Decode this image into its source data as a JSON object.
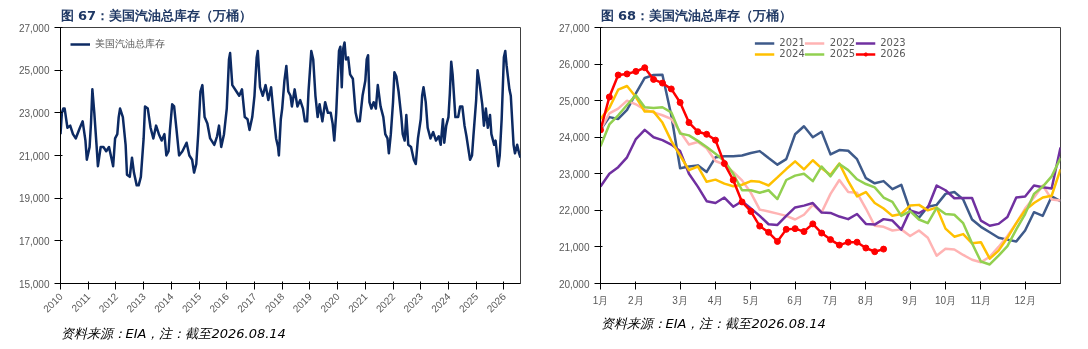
{
  "chart_data": [
    {
      "type": "line",
      "title": "图 67：美国汽油总库存（万桶）",
      "annotations": [
        "资料来源：EIA，注：截至2026.08.14"
      ],
      "grid": false,
      "legend": "top left",
      "xlim": [
        2010,
        2026.6
      ],
      "xticks": [
        2010,
        2011,
        2012,
        2013,
        2014,
        2015,
        2016,
        2017,
        2018,
        2019,
        2020,
        2021,
        2022,
        2023,
        2024,
        2025,
        2026
      ],
      "ylim": [
        15000,
        27000
      ],
      "yticks": [
        {
          "value": 15000,
          "label": "15,000"
        },
        {
          "value": 17000,
          "label": "17,000"
        },
        {
          "value": 19000,
          "label": "19,000"
        },
        {
          "value": 21000,
          "label": "21,000"
        },
        {
          "value": 23000,
          "label": "23,000"
        },
        {
          "value": 25000,
          "label": "25,000"
        },
        {
          "value": 27000,
          "label": "27,000"
        }
      ],
      "x": [
        2010.0,
        2010.05,
        2010.1,
        2010.15,
        2010.25,
        2010.35,
        2010.45,
        2010.55,
        2010.7,
        2010.8,
        2010.9,
        2010.95,
        2011.05,
        2011.1,
        2011.15,
        2011.22,
        2011.3,
        2011.35,
        2011.45,
        2011.55,
        2011.65,
        2011.75,
        2011.85,
        2011.9,
        2011.97,
        2012.05,
        2012.1,
        2012.15,
        2012.25,
        2012.35,
        2012.4,
        2012.5,
        2012.58,
        2012.65,
        2012.75,
        2012.82,
        2012.9,
        2013.0,
        2013.05,
        2013.15,
        2013.25,
        2013.35,
        2013.45,
        2013.55,
        2013.65,
        2013.75,
        2013.82,
        2013.9,
        2013.95,
        2014.03,
        2014.1,
        2014.18,
        2014.28,
        2014.4,
        2014.55,
        2014.65,
        2014.75,
        2014.82,
        2014.9,
        2014.97,
        2015.05,
        2015.12,
        2015.2,
        2015.3,
        2015.4,
        2015.55,
        2015.65,
        2015.72,
        2015.8,
        2015.9,
        2016.0,
        2016.08,
        2016.12,
        2016.2,
        2016.35,
        2016.45,
        2016.55,
        2016.65,
        2016.75,
        2016.82,
        2016.92,
        2017.0,
        2017.08,
        2017.12,
        2017.2,
        2017.3,
        2017.4,
        2017.5,
        2017.6,
        2017.7,
        2017.78,
        2017.85,
        2017.88,
        2017.95,
        2018.0,
        2018.08,
        2018.15,
        2018.22,
        2018.3,
        2018.35,
        2018.45,
        2018.55,
        2018.65,
        2018.75,
        2018.82,
        2018.9,
        2018.95,
        2019.05,
        2019.12,
        2019.2,
        2019.28,
        2019.35,
        2019.45,
        2019.55,
        2019.65,
        2019.75,
        2019.82,
        2019.88,
        2019.95,
        2020.0,
        2020.05,
        2020.1,
        2020.15,
        2020.2,
        2020.25,
        2020.3,
        2020.38,
        2020.45,
        2020.55,
        2020.65,
        2020.72,
        2020.8,
        2020.9,
        2021.0,
        2021.05,
        2021.1,
        2021.15,
        2021.22,
        2021.3,
        2021.38,
        2021.45,
        2021.55,
        2021.65,
        2021.72,
        2021.8,
        2021.85,
        2021.92,
        2022.0,
        2022.05,
        2022.12,
        2022.2,
        2022.3,
        2022.35,
        2022.42,
        2022.48,
        2022.55,
        2022.65,
        2022.75,
        2022.82,
        2022.9,
        2023.0,
        2023.05,
        2023.1,
        2023.18,
        2023.25,
        2023.35,
        2023.45,
        2023.55,
        2023.65,
        2023.72,
        2023.8,
        2023.85,
        2023.92,
        2024.0,
        2024.05,
        2024.1,
        2024.15,
        2024.25,
        2024.35,
        2024.42,
        2024.5,
        2024.58,
        2024.65,
        2024.72,
        2024.78,
        2024.85,
        2024.9,
        2025.0,
        2025.05,
        2025.12,
        2025.22,
        2025.28,
        2025.35,
        2025.42,
        2025.5,
        2025.55,
        2025.65,
        2025.7,
        2025.8,
        2025.85,
        2025.92,
        2026.0,
        2026.05,
        2026.1,
        2026.2,
        2026.25,
        2026.35,
        2026.4,
        2026.48,
        2026.55,
        2026.6
      ],
      "series": [
        {
          "name": "美国汽油总库存",
          "color": "#0c2a63",
          "values": [
            22000,
            23000,
            23200,
            23200,
            22300,
            22400,
            22000,
            21800,
            22300,
            22600,
            21700,
            20800,
            21400,
            22500,
            24100,
            23000,
            21500,
            20500,
            21400,
            21400,
            21200,
            21400,
            20800,
            20500,
            21800,
            22000,
            22800,
            23200,
            22800,
            21500,
            20100,
            20000,
            20900,
            20200,
            19600,
            19600,
            20000,
            21800,
            23300,
            23200,
            22300,
            21800,
            22400,
            22000,
            21700,
            22000,
            21000,
            21200,
            22200,
            23400,
            23300,
            22300,
            21000,
            21200,
            21600,
            21000,
            20800,
            20200,
            20600,
            22000,
            24000,
            24300,
            22800,
            22500,
            21800,
            21500,
            21900,
            22400,
            21400,
            22000,
            23200,
            25500,
            25800,
            24300,
            24000,
            23800,
            24100,
            22800,
            22700,
            22200,
            22800,
            23800,
            25600,
            25900,
            24200,
            23800,
            24300,
            23600,
            24200,
            22800,
            21800,
            21400,
            21000,
            22700,
            23200,
            24500,
            25200,
            24000,
            23800,
            23300,
            24100,
            23300,
            23600,
            23200,
            22600,
            22600,
            24000,
            25900,
            25500,
            23800,
            22800,
            23400,
            22600,
            23500,
            23000,
            23000,
            22500,
            21700,
            23000,
            24500,
            25900,
            26100,
            24200,
            26000,
            26300,
            25500,
            25600,
            24800,
            24600,
            23000,
            22600,
            22600,
            23800,
            24500,
            25500,
            25700,
            23500,
            23200,
            23500,
            23200,
            24300,
            23300,
            22800,
            22000,
            21800,
            21100,
            22000,
            23500,
            24900,
            24700,
            24000,
            22800,
            22000,
            21700,
            22900,
            21500,
            21400,
            20800,
            20600,
            21800,
            22700,
            23800,
            24200,
            23500,
            22300,
            21800,
            22100,
            21700,
            21900,
            21500,
            22700,
            21600,
            22400,
            22800,
            23900,
            25400,
            24800,
            22800,
            22800,
            23300,
            23300,
            22400,
            21900,
            21300,
            20800,
            21000,
            21900,
            23600,
            25000,
            24400,
            23400,
            22400,
            23200,
            22300,
            22900,
            22000,
            21500,
            21700,
            20500,
            21000,
            22700,
            25600,
            25900,
            25200,
            24100,
            23800,
            21500,
            21100,
            21500,
            21100,
            20900
          ]
        }
      ]
    },
    {
      "type": "line",
      "title": "图 68：美国汽油总库存（万桶）",
      "annotations": [
        "资料来源：EIA，注：截至2026.08.14"
      ],
      "grid": false,
      "legend": "top",
      "categories": [
        "1月",
        null,
        null,
        null,
        "2月",
        null,
        null,
        null,
        null,
        "3月",
        null,
        null,
        null,
        "4月",
        null,
        null,
        null,
        "5月",
        null,
        null,
        null,
        null,
        "6月",
        null,
        null,
        null,
        "7月",
        null,
        null,
        null,
        "8月",
        null,
        null,
        null,
        null,
        "9月",
        null,
        null,
        null,
        "10月",
        null,
        null,
        null,
        "11月",
        null,
        null,
        null,
        null,
        "12月",
        null,
        null,
        null,
        null
      ],
      "ylim": [
        20000,
        27000
      ],
      "yticks": [
        {
          "value": 20000,
          "label": "20,000"
        },
        {
          "value": 21000,
          "label": "21,000"
        },
        {
          "value": 22000,
          "label": "22,000"
        },
        {
          "value": 23000,
          "label": "23,000"
        },
        {
          "value": 24000,
          "label": "24,000"
        },
        {
          "value": 25000,
          "label": "25,000"
        },
        {
          "value": 26000,
          "label": "26,000"
        },
        {
          "value": 27000,
          "label": "27,000"
        }
      ],
      "series": [
        {
          "name": "2021",
          "color": "#3e5a8a",
          "values": [
            24200,
            24550,
            24500,
            24750,
            25200,
            25620,
            25700,
            25710,
            24600,
            23150,
            23200,
            23230,
            23050,
            23450,
            23480,
            23480,
            23500,
            23570,
            23620,
            23430,
            23250,
            23400,
            24080,
            24300,
            24000,
            24150,
            23530,
            23650,
            23630,
            23400,
            22880,
            22740,
            22800,
            22580,
            22700,
            22000,
            21800,
            22100,
            22150,
            22450,
            22500,
            22300,
            21750,
            21550,
            21400,
            21250,
            21200,
            21150,
            21450,
            21950,
            21850,
            22380,
            22250
          ]
        },
        {
          "name": "2022",
          "color": "#ffb3b3",
          "values": [
            24200,
            24650,
            24780,
            25000,
            24900,
            24750,
            24680,
            24600,
            24500,
            24150,
            23800,
            23870,
            23700,
            23350,
            23250,
            23050,
            22820,
            22480,
            22020,
            21970,
            21910,
            21850,
            21750,
            21880,
            22150,
            21950,
            22450,
            22830,
            22500,
            22480,
            22050,
            21580,
            21550,
            21450,
            21480,
            21300,
            21450,
            21250,
            20760,
            20950,
            20930,
            20780,
            20650,
            20580,
            20730,
            21000,
            21300,
            21650,
            22050,
            22350,
            22680,
            22300,
            22270
          ]
        },
        {
          "name": "2023",
          "color": "#7030a0",
          "values": [
            22650,
            23000,
            23180,
            23450,
            23950,
            24200,
            24000,
            23920,
            23800,
            23620,
            23000,
            22650,
            22250,
            22200,
            22350,
            22100,
            22250,
            22050,
            21850,
            21620,
            21600,
            21850,
            22080,
            22130,
            22200,
            21940,
            21930,
            21830,
            21760,
            21900,
            21630,
            21610,
            21760,
            21720,
            21470,
            22000,
            21920,
            22070,
            22680,
            22550,
            22330,
            22340,
            22340,
            21720,
            21580,
            21630,
            21820,
            22350,
            22380,
            22680,
            22630,
            22600,
            23720
          ]
        },
        {
          "name": "2024",
          "color": "#ffc000",
          "values": [
            24500,
            24800,
            25300,
            25400,
            25100,
            24700,
            24700,
            24400,
            23900,
            23500,
            23100,
            23200,
            22780,
            22840,
            22730,
            22660,
            22700,
            22800,
            22780,
            22680,
            22900,
            23130,
            23340,
            23120,
            23370,
            23150,
            22970,
            23280,
            22800,
            22380,
            22500,
            22200,
            22050,
            21850,
            21900,
            22130,
            22150,
            22000,
            22080,
            21500,
            21280,
            21350,
            21100,
            21130,
            20680,
            20900,
            21250,
            21650,
            22000,
            22200,
            22350,
            22400,
            23120
          ]
        },
        {
          "name": "2025",
          "color": "#92d050",
          "values": [
            23750,
            24350,
            24600,
            24880,
            25150,
            24820,
            24800,
            24820,
            24680,
            24100,
            24050,
            23900,
            23730,
            23550,
            23350,
            23000,
            22550,
            22550,
            22480,
            22550,
            22310,
            22830,
            22950,
            23000,
            22800,
            23200,
            22930,
            23270,
            23100,
            22850,
            22720,
            22630,
            22350,
            22230,
            21850,
            21980,
            21750,
            21650,
            22070,
            21900,
            21880,
            21650,
            21100,
            20600,
            20520,
            20760,
            21020,
            21480,
            21900,
            22450,
            22650,
            22930,
            23430
          ]
        },
        {
          "name": "2026",
          "color": "#ff0000",
          "marker": "circle",
          "values": [
            24200,
            25100,
            25700,
            25730,
            25800,
            25900,
            25580,
            25480,
            25320,
            24950,
            24400,
            24150,
            24080,
            23920,
            23280,
            22830,
            22230,
            21970,
            21570,
            21400,
            21150,
            21480,
            21500,
            21420,
            21630,
            21380,
            21200,
            21050,
            21130,
            21130,
            20970,
            20870,
            20940,
            null,
            null,
            null,
            null,
            null,
            null,
            null,
            null,
            null,
            null,
            null,
            null,
            null,
            null,
            null,
            null,
            null,
            null,
            null,
            null
          ]
        }
      ]
    }
  ]
}
